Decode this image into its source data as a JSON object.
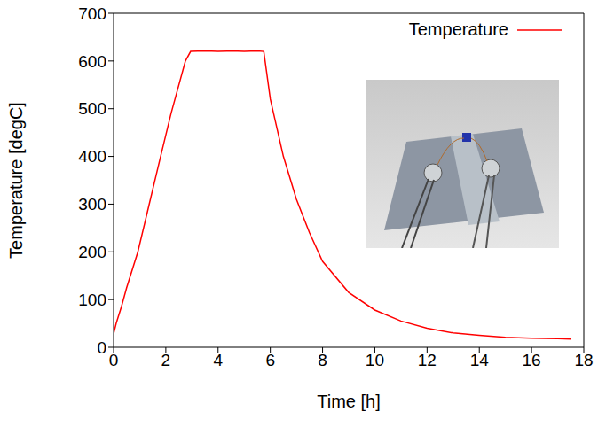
{
  "chart_data": {
    "type": "line",
    "x_label": "Time [h]",
    "y_label": "Temperature [degC]",
    "x": [
      0,
      0.1,
      0.3,
      0.5,
      0.93,
      1.3,
      1.8,
      2.2,
      2.75,
      2.95,
      3.5,
      4.0,
      4.5,
      5.0,
      5.5,
      5.75,
      6.0,
      6.5,
      7.0,
      7.5,
      8.0,
      9.0,
      10.0,
      11.0,
      12.0,
      13.0,
      14.0,
      15.0,
      16.0,
      17.0,
      17.5
    ],
    "series": [
      {
        "name": "Temperature",
        "color": "#ff0000",
        "values": [
          28,
          50,
          85,
          125,
          200,
          285,
          400,
          490,
          600,
          620,
          621,
          620,
          621,
          620,
          621,
          620,
          520,
          400,
          310,
          240,
          180,
          115,
          78,
          55,
          40,
          30,
          25,
          21,
          19,
          18,
          17
        ]
      }
    ],
    "xlim": [
      0,
      18
    ],
    "xticks": [
      0,
      2,
      4,
      6,
      8,
      10,
      12,
      14,
      16,
      18
    ],
    "ylim": [
      0,
      700
    ],
    "yticks": [
      0,
      100,
      200,
      300,
      400,
      500,
      600,
      700
    ],
    "grid": false,
    "legend": "upper right"
  }
}
